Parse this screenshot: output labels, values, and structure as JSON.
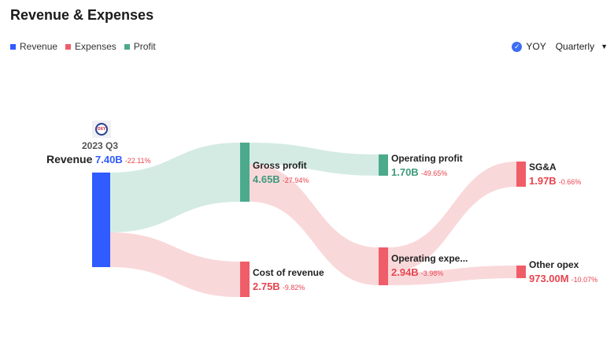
{
  "title": "Revenue & Expenses",
  "legend": [
    {
      "label": "Revenue",
      "color": "#2f5bff"
    },
    {
      "label": "Expenses",
      "color": "#ef5d68"
    },
    {
      "label": "Profit",
      "color": "#4caa8c"
    }
  ],
  "controls": {
    "yoy_label": "YOY",
    "yoy_checked": true,
    "period": "Quarterly"
  },
  "company_logo": "OXY",
  "chart_data": {
    "type": "sankey",
    "period": "2023 Q3",
    "nodes": [
      {
        "id": "revenue",
        "label": "Revenue",
        "value": "7.40B",
        "change": "-22.11%",
        "category": "Revenue"
      },
      {
        "id": "gross_profit",
        "label": "Gross profit",
        "value": "4.65B",
        "change": "-27.94%",
        "category": "Profit"
      },
      {
        "id": "cost_of_revenue",
        "label": "Cost of revenue",
        "value": "2.75B",
        "change": "-9.82%",
        "category": "Expenses"
      },
      {
        "id": "operating_profit",
        "label": "Operating profit",
        "value": "1.70B",
        "change": "-49.65%",
        "category": "Profit"
      },
      {
        "id": "operating_expenses",
        "label": "Operating expe...",
        "value": "2.94B",
        "change": "-3.98%",
        "category": "Expenses"
      },
      {
        "id": "sga",
        "label": "SG&A",
        "value": "1.97B",
        "change": "-0.66%",
        "category": "Expenses"
      },
      {
        "id": "other_opex",
        "label": "Other opex",
        "value": "973.00M",
        "change": "-10.07%",
        "category": "Expenses"
      }
    ],
    "links": [
      {
        "source": "revenue",
        "target": "gross_profit",
        "value": 4.65
      },
      {
        "source": "revenue",
        "target": "cost_of_revenue",
        "value": 2.75
      },
      {
        "source": "gross_profit",
        "target": "operating_profit",
        "value": 1.7
      },
      {
        "source": "gross_profit",
        "target": "operating_expenses",
        "value": 2.94
      },
      {
        "source": "operating_expenses",
        "target": "sga",
        "value": 1.97
      },
      {
        "source": "operating_expenses",
        "target": "other_opex",
        "value": 0.973
      }
    ]
  }
}
